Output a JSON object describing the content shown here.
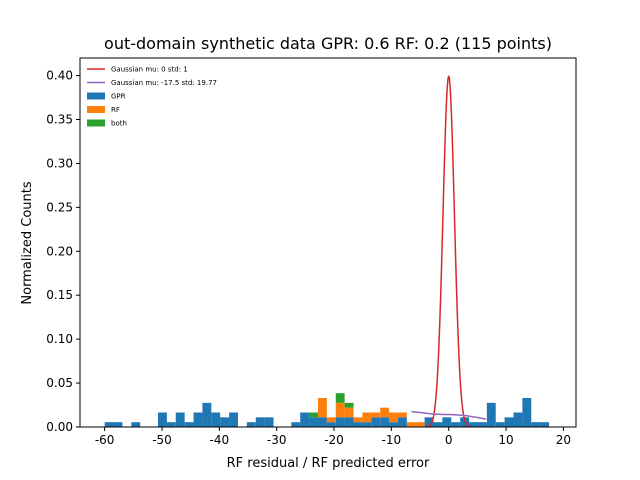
{
  "chart_data": {
    "type": "bar",
    "title": "out-domain synthetic data GPR: 0.6 RF: 0.2 (115 points)",
    "xlabel": "RF residual / RF predicted error",
    "ylabel": "Normalized Counts",
    "xlim": [
      -64.3,
      22.2
    ],
    "ylim": [
      0,
      0.42
    ],
    "xticks": [
      "-60",
      "-50",
      "-40",
      "-30",
      "-20",
      "-10",
      "0",
      "10",
      "20"
    ],
    "xtick_values": [
      -60,
      -50,
      -40,
      -30,
      -20,
      -10,
      0,
      10,
      20
    ],
    "yticks": [
      "0.00",
      "0.05",
      "0.10",
      "0.15",
      "0.20",
      "0.25",
      "0.30",
      "0.35",
      "0.40"
    ],
    "ytick_values": [
      0,
      0.05,
      0.1,
      0.15,
      0.2,
      0.25,
      0.3,
      0.35,
      0.4
    ],
    "grid": false,
    "legend_position": "top-left",
    "legend": [
      {
        "label": "Gaussian mu: 0 std: 1",
        "kind": "line",
        "color": "#d62728"
      },
      {
        "label": "Gaussian mu: -17.5 std: 19.77",
        "kind": "line",
        "color": "#9467bd"
      },
      {
        "label": "GPR",
        "kind": "patch",
        "color": "#1f77b4"
      },
      {
        "label": "RF",
        "kind": "patch",
        "color": "#ff7f0e"
      },
      {
        "label": "both",
        "kind": "patch",
        "color": "#2ca02c"
      }
    ],
    "bin_width": 1.55,
    "bins": [
      {
        "x0": -60.0,
        "gpr": 0.0055,
        "rf": 0,
        "both": 0
      },
      {
        "x0": -58.45,
        "gpr": 0.0055,
        "rf": 0,
        "both": 0
      },
      {
        "x0": -55.35,
        "gpr": 0.0055,
        "rf": 0,
        "both": 0
      },
      {
        "x0": -50.7,
        "gpr": 0.0165,
        "rf": 0,
        "both": 0
      },
      {
        "x0": -49.15,
        "gpr": 0.0055,
        "rf": 0,
        "both": 0
      },
      {
        "x0": -47.6,
        "gpr": 0.0165,
        "rf": 0,
        "both": 0
      },
      {
        "x0": -46.05,
        "gpr": 0.0055,
        "rf": 0,
        "both": 0
      },
      {
        "x0": -44.5,
        "gpr": 0.0165,
        "rf": 0,
        "both": 0
      },
      {
        "x0": -42.95,
        "gpr": 0.0275,
        "rf": 0,
        "both": 0
      },
      {
        "x0": -41.4,
        "gpr": 0.0165,
        "rf": 0,
        "both": 0
      },
      {
        "x0": -39.85,
        "gpr": 0.011,
        "rf": 0,
        "both": 0
      },
      {
        "x0": -38.3,
        "gpr": 0.0165,
        "rf": 0,
        "both": 0
      },
      {
        "x0": -35.2,
        "gpr": 0.0055,
        "rf": 0,
        "both": 0
      },
      {
        "x0": -33.65,
        "gpr": 0.011,
        "rf": 0,
        "both": 0
      },
      {
        "x0": -32.1,
        "gpr": 0.011,
        "rf": 0,
        "both": 0
      },
      {
        "x0": -27.45,
        "gpr": 0.0055,
        "rf": 0,
        "both": 0
      },
      {
        "x0": -25.9,
        "gpr": 0.0165,
        "rf": 0,
        "both": 0
      },
      {
        "x0": -24.35,
        "gpr": 0.011,
        "rf": 0,
        "both": 0.0055
      },
      {
        "x0": -22.8,
        "gpr": 0.011,
        "rf": 0.022,
        "both": 0
      },
      {
        "x0": -21.25,
        "gpr": 0.0055,
        "rf": 0.0055,
        "both": 0
      },
      {
        "x0": -19.7,
        "gpr": 0.011,
        "rf": 0.0165,
        "both": 0.011
      },
      {
        "x0": -18.15,
        "gpr": 0.011,
        "rf": 0.011,
        "both": 0.0055
      },
      {
        "x0": -16.6,
        "gpr": 0.0055,
        "rf": 0.0055,
        "both": 0
      },
      {
        "x0": -15.05,
        "gpr": 0.0055,
        "rf": 0.011,
        "both": 0
      },
      {
        "x0": -13.5,
        "gpr": 0.011,
        "rf": 0.0055,
        "both": 0
      },
      {
        "x0": -11.95,
        "gpr": 0.011,
        "rf": 0.011,
        "both": 0
      },
      {
        "x0": -10.4,
        "gpr": 0.0055,
        "rf": 0.011,
        "both": 0
      },
      {
        "x0": -8.85,
        "gpr": 0.011,
        "rf": 0.0055,
        "both": 0
      },
      {
        "x0": -7.3,
        "gpr": 0,
        "rf": 0.0055,
        "both": 0
      },
      {
        "x0": -5.75,
        "gpr": 0,
        "rf": 0.0055,
        "both": 0
      },
      {
        "x0": -4.2,
        "gpr": 0.011,
        "rf": 0,
        "both": 0
      },
      {
        "x0": -2.65,
        "gpr": 0.0055,
        "rf": 0,
        "both": 0
      },
      {
        "x0": -1.1,
        "gpr": 0.011,
        "rf": 0,
        "both": 0
      },
      {
        "x0": 0.45,
        "gpr": 0.0055,
        "rf": 0,
        "both": 0
      },
      {
        "x0": 2.0,
        "gpr": 0.011,
        "rf": 0,
        "both": 0
      },
      {
        "x0": 3.55,
        "gpr": 0.0055,
        "rf": 0,
        "both": 0
      },
      {
        "x0": 5.1,
        "gpr": 0.0055,
        "rf": 0,
        "both": 0
      },
      {
        "x0": 6.65,
        "gpr": 0.0275,
        "rf": 0,
        "both": 0
      },
      {
        "x0": 8.2,
        "gpr": 0.0055,
        "rf": 0,
        "both": 0
      },
      {
        "x0": 9.75,
        "gpr": 0.011,
        "rf": 0,
        "both": 0
      },
      {
        "x0": 11.3,
        "gpr": 0.0165,
        "rf": 0,
        "both": 0
      },
      {
        "x0": 12.85,
        "gpr": 0.033,
        "rf": 0,
        "both": 0
      },
      {
        "x0": 14.4,
        "gpr": 0.0055,
        "rf": 0,
        "both": 0
      },
      {
        "x0": 15.95,
        "gpr": 0.0055,
        "rf": 0,
        "both": 0
      }
    ],
    "curves": [
      {
        "label": "Gaussian mu: 0 std: 1",
        "color": "#d62728",
        "mu": 0,
        "std": 1,
        "x_range": [
          -4,
          4
        ],
        "points": 161
      },
      {
        "label": "Gaussian mu: -17.5 std: 19.77",
        "color": "#9467bd",
        "x_range": [
          -6.5,
          6.5
        ],
        "x": [
          -6.5,
          -5,
          -3,
          -1,
          0,
          1,
          3,
          5,
          6.5
        ],
        "y": [
          0.0175,
          0.0165,
          0.015,
          0.0142,
          0.0142,
          0.014,
          0.013,
          0.0108,
          0.009
        ]
      }
    ]
  }
}
